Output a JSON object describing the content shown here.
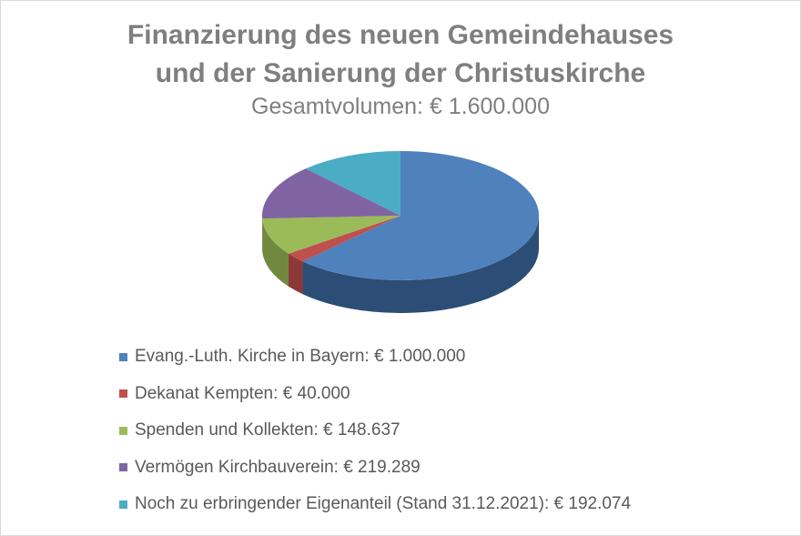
{
  "chart_data": {
    "type": "pie",
    "title_lines": [
      "Finanzierung des neuen Gemeindehauses",
      "und der Sanierung der Christuskirche"
    ],
    "subtitle": "Gesamtvolumen: € 1.600.000",
    "legend_position": "bottom",
    "style": "3d",
    "slices": [
      {
        "label": "Evang.-Luth. Kirche in Bayern: € 1.000.000",
        "value": 1000000,
        "color": "#4f81bd",
        "side_color": "#2c4d75"
      },
      {
        "label": "Dekanat Kempten: € 40.000",
        "value": 40000,
        "color": "#c0504d",
        "side_color": "#8c3836"
      },
      {
        "label": "Spenden und Kollekten: € 148.637",
        "value": 148637,
        "color": "#9bbb59",
        "side_color": "#71893f"
      },
      {
        "label": "Vermögen Kirchbauverein: € 219.289",
        "value": 219289,
        "color": "#8064a2",
        "side_color": "#5c4776"
      },
      {
        "label": "Noch zu erbringender Eigenanteil (Stand 31.12.2021): € 192.074",
        "value": 192074,
        "color": "#4bacc6",
        "side_color": "#317f94"
      }
    ]
  }
}
